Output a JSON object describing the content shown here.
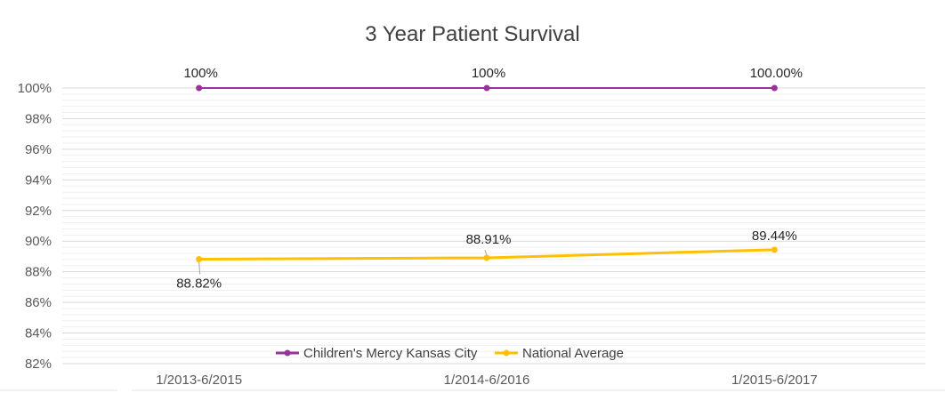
{
  "chart_data": {
    "type": "line",
    "title": "3 Year Patient Survival",
    "categories": [
      "1/2013-6/2015",
      "1/2014-6/2016",
      "1/2015-6/2017"
    ],
    "ylim": [
      82,
      100
    ],
    "yticks": [
      82,
      84,
      86,
      88,
      90,
      92,
      94,
      96,
      98,
      100
    ],
    "ytick_labels": [
      "82%",
      "84%",
      "86%",
      "88%",
      "90%",
      "92%",
      "94%",
      "96%",
      "98%",
      "100%"
    ],
    "grid": true,
    "legend_position": "bottom",
    "series": [
      {
        "name": "Children's Mercy Kansas City",
        "color": "#993399",
        "values": [
          100,
          100,
          100
        ],
        "labels": [
          "100%",
          "100%",
          "100.00%"
        ]
      },
      {
        "name": "National Average",
        "color": "#FFC000",
        "values": [
          88.82,
          88.91,
          89.44
        ],
        "labels": [
          "88.82%",
          "88.91%",
          "89.44%"
        ]
      }
    ]
  }
}
